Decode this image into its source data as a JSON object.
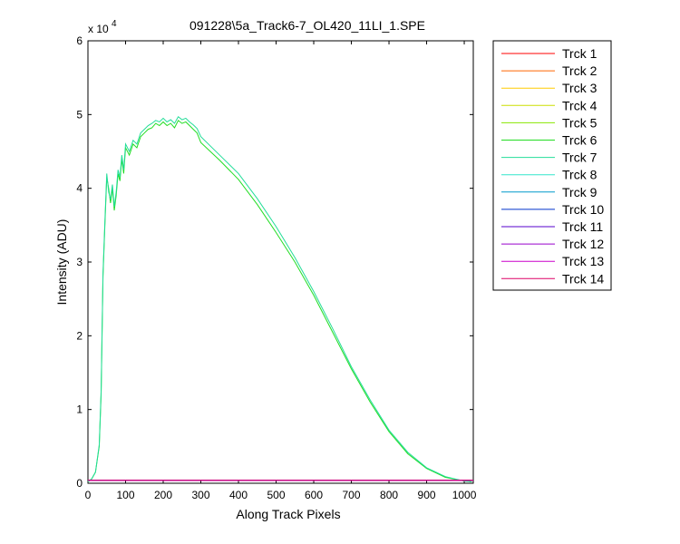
{
  "chart_data": {
    "type": "line",
    "title": "091228\\5a_Track6-7_OL420_11LI_1.SPE",
    "xlabel": "Along Track Pixels",
    "ylabel": "Intensity (ADU)",
    "y_exponent_label": "x 10",
    "y_exponent_power": "4",
    "xlim": [
      0,
      1024
    ],
    "ylim": [
      0,
      6
    ],
    "y_scale_factor": 10000,
    "xticks": [
      0,
      100,
      200,
      300,
      400,
      500,
      600,
      700,
      800,
      900,
      1000
    ],
    "yticks": [
      0,
      1,
      2,
      3,
      4,
      5,
      6
    ],
    "grid": false,
    "legend_placement": "outside-right",
    "baseline_y": 0.04,
    "series": [
      {
        "name": "Trck 1",
        "color": "#ff0000",
        "kind": "baseline"
      },
      {
        "name": "Trck 2",
        "color": "#ff6600",
        "kind": "baseline"
      },
      {
        "name": "Trck 3",
        "color": "#ffcc00",
        "kind": "baseline"
      },
      {
        "name": "Trck 4",
        "color": "#ccdd00",
        "kind": "baseline"
      },
      {
        "name": "Trck 5",
        "color": "#88e600",
        "kind": "baseline"
      },
      {
        "name": "Trck 6",
        "color": "#22dd22",
        "kind": "signal",
        "x": [
          0,
          10,
          20,
          30,
          35,
          40,
          45,
          50,
          55,
          60,
          65,
          70,
          75,
          80,
          85,
          90,
          95,
          100,
          110,
          120,
          130,
          140,
          150,
          160,
          170,
          180,
          190,
          200,
          210,
          220,
          230,
          240,
          250,
          260,
          270,
          280,
          290,
          300,
          350,
          400,
          450,
          500,
          550,
          600,
          650,
          700,
          750,
          800,
          850,
          900,
          950,
          1000,
          1020
        ],
        "y": [
          0.02,
          0.06,
          0.15,
          0.5,
          1.2,
          2.8,
          3.5,
          4.15,
          4.0,
          3.8,
          4.0,
          3.7,
          3.9,
          4.2,
          4.1,
          4.4,
          4.2,
          4.55,
          4.45,
          4.6,
          4.55,
          4.7,
          4.75,
          4.8,
          4.82,
          4.88,
          4.85,
          4.9,
          4.85,
          4.88,
          4.82,
          4.92,
          4.88,
          4.9,
          4.85,
          4.8,
          4.75,
          4.62,
          4.38,
          4.12,
          3.78,
          3.4,
          3.0,
          2.55,
          2.05,
          1.55,
          1.1,
          0.7,
          0.4,
          0.2,
          0.08,
          0.03,
          0.02
        ]
      },
      {
        "name": "Trck 7",
        "color": "#22dd99",
        "kind": "signal",
        "x": [
          0,
          10,
          20,
          30,
          35,
          40,
          45,
          50,
          55,
          60,
          65,
          70,
          75,
          80,
          85,
          90,
          95,
          100,
          110,
          120,
          130,
          140,
          150,
          160,
          170,
          180,
          190,
          200,
          210,
          220,
          230,
          240,
          250,
          260,
          270,
          280,
          290,
          300,
          350,
          400,
          450,
          500,
          550,
          600,
          650,
          700,
          750,
          800,
          850,
          900,
          950,
          1000,
          1020
        ],
        "y": [
          0.02,
          0.06,
          0.15,
          0.52,
          1.25,
          2.85,
          3.55,
          4.2,
          3.95,
          3.85,
          4.05,
          3.75,
          3.95,
          4.25,
          4.15,
          4.45,
          4.25,
          4.6,
          4.5,
          4.65,
          4.6,
          4.75,
          4.8,
          4.85,
          4.88,
          4.92,
          4.9,
          4.95,
          4.9,
          4.93,
          4.88,
          4.97,
          4.93,
          4.95,
          4.9,
          4.86,
          4.81,
          4.7,
          4.45,
          4.2,
          3.86,
          3.48,
          3.06,
          2.6,
          2.1,
          1.58,
          1.13,
          0.72,
          0.42,
          0.21,
          0.09,
          0.03,
          0.02
        ]
      },
      {
        "name": "Trck 8",
        "color": "#33e6cc",
        "kind": "baseline"
      },
      {
        "name": "Trck 9",
        "color": "#0099cc",
        "kind": "baseline"
      },
      {
        "name": "Trck 10",
        "color": "#0033cc",
        "kind": "baseline"
      },
      {
        "name": "Trck 11",
        "color": "#5500cc",
        "kind": "baseline"
      },
      {
        "name": "Trck 12",
        "color": "#9900cc",
        "kind": "baseline"
      },
      {
        "name": "Trck 13",
        "color": "#cc00cc",
        "kind": "baseline"
      },
      {
        "name": "Trck 14",
        "color": "#dd0066",
        "kind": "baseline"
      }
    ]
  }
}
